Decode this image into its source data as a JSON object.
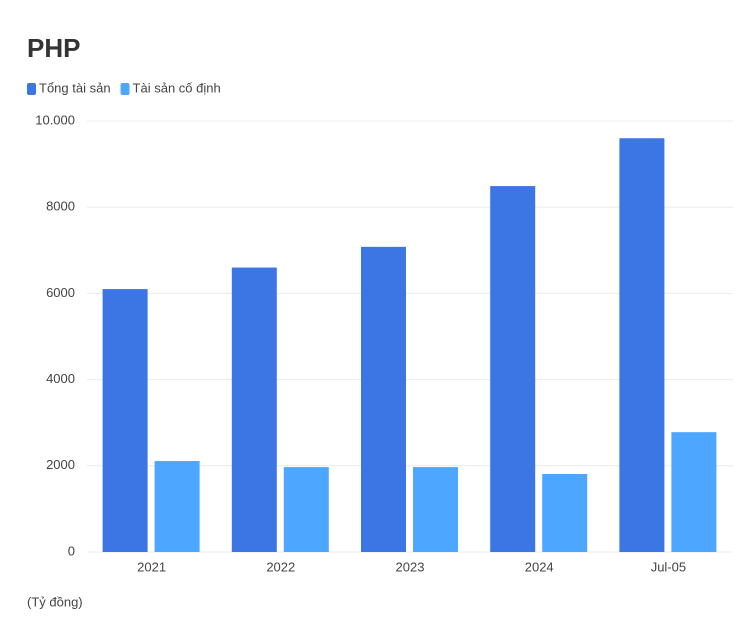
{
  "chart_data": {
    "type": "bar",
    "title": "PHP",
    "categories": [
      "2021",
      "2022",
      "2023",
      "2024",
      "Jul-05"
    ],
    "series": [
      {
        "name": "Tổng tài sản",
        "color": "#3b76e4",
        "values": [
          6100,
          6600,
          7080,
          8490,
          9600
        ]
      },
      {
        "name": "Tài sản cố định",
        "color": "#4da6ff",
        "values": [
          2110,
          1970,
          1970,
          1810,
          2780
        ]
      }
    ],
    "ylim": [
      0,
      10000
    ],
    "yticks": [
      0,
      2000,
      4000,
      6000,
      8000,
      {
        "value": 10000,
        "label": "10.000"
      }
    ],
    "grid": true,
    "legend": "top-left",
    "footnote": "(Tỷ đồng)"
  }
}
